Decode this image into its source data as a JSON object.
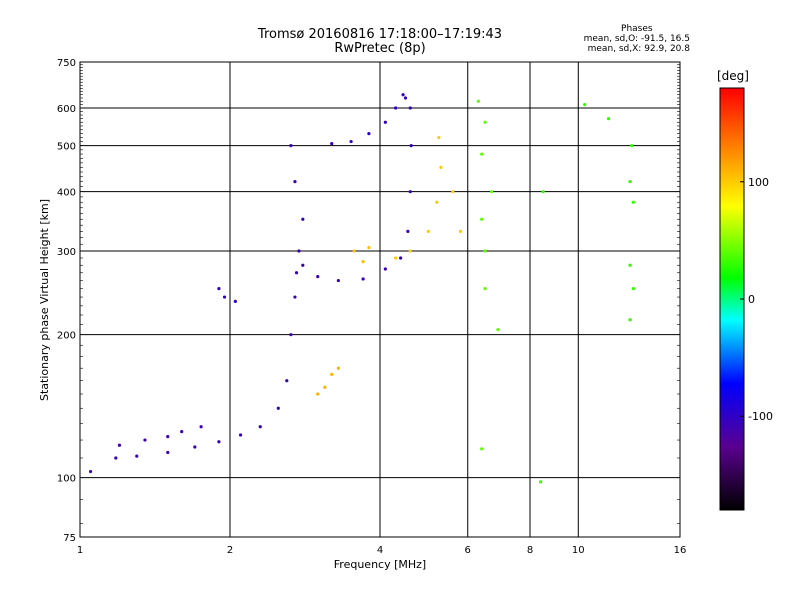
{
  "title_line1": "Tromsø 20160816 17:18:00–17:19:43",
  "title_line2": "RwPretec (8p)",
  "phases_box": {
    "heading": "Phases",
    "line_o": "mean, sd,O: -91.5, 16.5",
    "line_x": "mean, sd,X:  92.9, 20.8"
  },
  "colorbar": {
    "unit": "[deg]",
    "ticks": [
      "100",
      "0",
      "-100"
    ],
    "tick_values": [
      100,
      0,
      -100
    ],
    "range": [
      -180,
      180
    ]
  },
  "chart_data": {
    "type": "scatter",
    "xlabel": "Frequency [MHz]",
    "ylabel": "Stationary phase Virtual Height [km]",
    "x_scale": "log",
    "y_scale": "log",
    "xlim": [
      1,
      16
    ],
    "ylim": [
      75,
      750
    ],
    "xticks": [
      1,
      2,
      4,
      6,
      8,
      10,
      16
    ],
    "yticks": [
      75,
      100,
      200,
      300,
      400,
      500,
      600,
      750
    ],
    "grid": true,
    "color_scale": "phase (deg), rainbow",
    "traces": [
      {
        "points": [
          [
            1.05,
            103
          ],
          [
            1.18,
            110
          ],
          [
            1.3,
            111
          ],
          [
            1.5,
            113
          ],
          [
            1.7,
            116
          ],
          [
            1.9,
            119
          ],
          [
            2.1,
            123
          ],
          [
            2.3,
            128
          ],
          [
            2.5,
            140
          ],
          [
            2.6,
            160
          ],
          [
            2.65,
            200
          ],
          [
            2.7,
            240
          ],
          [
            2.72,
            270
          ],
          [
            2.75,
            300
          ],
          [
            2.8,
            350
          ],
          [
            2.7,
            420
          ],
          [
            2.65,
            500
          ]
        ],
        "phase": -105
      },
      {
        "points": [
          [
            1.2,
            117
          ],
          [
            1.35,
            120
          ],
          [
            1.5,
            122
          ],
          [
            1.6,
            125
          ],
          [
            1.75,
            128
          ]
        ],
        "phase": -110
      },
      {
        "points": [
          [
            2.8,
            280
          ],
          [
            3.0,
            265
          ],
          [
            3.3,
            260
          ],
          [
            3.7,
            262
          ],
          [
            4.1,
            275
          ],
          [
            4.4,
            290
          ],
          [
            4.55,
            330
          ],
          [
            4.6,
            400
          ],
          [
            4.62,
            500
          ],
          [
            4.6,
            600
          ],
          [
            4.5,
            630
          ]
        ],
        "phase": -105
      },
      {
        "points": [
          [
            3.2,
            505
          ],
          [
            3.5,
            510
          ],
          [
            3.8,
            530
          ],
          [
            4.1,
            560
          ],
          [
            4.3,
            600
          ],
          [
            4.45,
            640
          ]
        ],
        "phase": -100
      },
      {
        "points": [
          [
            1.9,
            250
          ],
          [
            1.95,
            240
          ],
          [
            2.05,
            235
          ]
        ],
        "phase": -100
      },
      {
        "points": [
          [
            4.3,
            290
          ],
          [
            4.6,
            300
          ],
          [
            5.0,
            330
          ],
          [
            5.2,
            380
          ],
          [
            5.3,
            450
          ],
          [
            5.25,
            520
          ],
          [
            5.6,
            400
          ],
          [
            5.8,
            330
          ]
        ],
        "phase": 100
      },
      {
        "points": [
          [
            3.55,
            300
          ],
          [
            3.8,
            305
          ],
          [
            3.7,
            285
          ]
        ],
        "phase": 105
      },
      {
        "points": [
          [
            3.0,
            150
          ],
          [
            3.1,
            155
          ],
          [
            3.2,
            165
          ],
          [
            3.3,
            170
          ]
        ],
        "phase": 110
      },
      {
        "points": [
          [
            6.3,
            620
          ],
          [
            6.5,
            560
          ],
          [
            6.4,
            480
          ],
          [
            6.7,
            400
          ],
          [
            6.4,
            350
          ],
          [
            6.5,
            300
          ],
          [
            6.5,
            250
          ],
          [
            6.9,
            205
          ],
          [
            6.4,
            115
          ]
        ],
        "phase": 40
      },
      {
        "points": [
          [
            10.3,
            610
          ],
          [
            11.5,
            570
          ],
          [
            12.8,
            500
          ],
          [
            12.7,
            420
          ],
          [
            12.9,
            380
          ],
          [
            12.7,
            280
          ],
          [
            12.9,
            250
          ],
          [
            12.7,
            215
          ],
          [
            8.5,
            400
          ],
          [
            8.4,
            98
          ]
        ],
        "phase": 30
      }
    ]
  }
}
